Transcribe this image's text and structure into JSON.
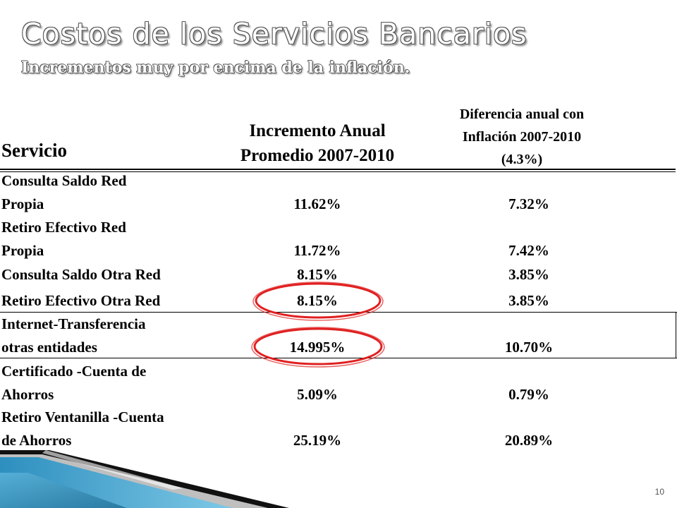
{
  "slide": {
    "title": "Costos de los Servicios Bancarios",
    "subtitle": "Incrementos muy por encima de la inflación.",
    "page_number": "10"
  },
  "table": {
    "headers": {
      "service": "Servicio",
      "increment_line1": "Incremento Anual",
      "increment_line2": "Promedio 2007-2010",
      "diff_line1": "Diferencia anual con",
      "diff_line2": "Inflación 2007-2010",
      "diff_line3": "(4.3%)"
    },
    "rows": [
      {
        "service_line1": "Consulta Saldo Red",
        "service_line2": "Propia",
        "increment": "11.62%",
        "difference": "7.32%"
      },
      {
        "service_line1": "Retiro Efectivo Red",
        "service_line2": "Propia",
        "increment": "11.72%",
        "difference": "7.42%"
      },
      {
        "service_line1": "Consulta Saldo Otra Red",
        "increment": "8.15%",
        "difference": "3.85%"
      },
      {
        "service_line1": "Retiro Efectivo Otra Red",
        "increment": "8.15%",
        "difference": "3.85%",
        "highlighted": true
      },
      {
        "service_line1": "Internet-Transferencia",
        "service_line2": "otras entidades",
        "increment": "14.995%",
        "difference": "10.70%",
        "highlighted": true
      },
      {
        "service_line1": "Certificado -Cuenta de",
        "service_line2": "Ahorros",
        "increment": "5.09%",
        "difference": "0.79%"
      },
      {
        "service_line1": "Retiro Ventanilla -Cuenta",
        "service_line2": "de Ahorros",
        "increment": "25.19%",
        "difference": "20.89%"
      }
    ]
  },
  "colors": {
    "highlight_circle": "#e02020",
    "corner_accent": "#3a9fc6"
  }
}
